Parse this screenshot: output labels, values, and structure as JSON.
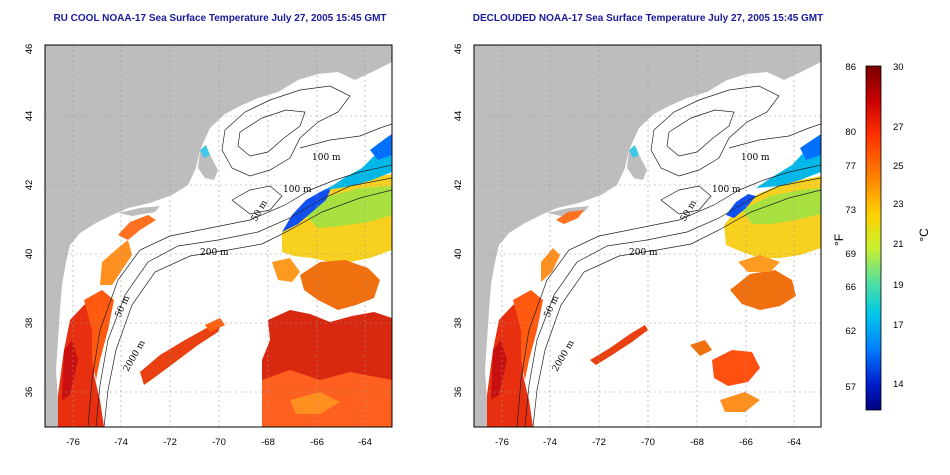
{
  "panels": [
    {
      "id": "left",
      "title": "RU COOL NOAA-17 Sea Surface Temperature July 27, 2005 15:45 GMT",
      "x_ticks": [
        "-76",
        "-74",
        "-72",
        "-70",
        "-68",
        "-66",
        "-64"
      ],
      "y_ticks": [
        "36",
        "38",
        "40",
        "42",
        "44",
        "46"
      ],
      "contour_labels": [
        "100 m",
        "100 m",
        "50 m",
        "200 m",
        "50 m",
        "2000 m"
      ]
    },
    {
      "id": "right",
      "title": "DECLOUDED NOAA-17 Sea Surface Temperature July 27, 2005 15:45 GMT",
      "x_ticks": [
        "-76",
        "-74",
        "-72",
        "-70",
        "-68",
        "-66",
        "-64"
      ],
      "y_ticks": [
        "36",
        "38",
        "40",
        "42",
        "44",
        "46"
      ],
      "contour_labels": [
        "100 m",
        "100 m",
        "50 m",
        "200 m",
        "50 m",
        "2000 m"
      ]
    }
  ],
  "colorbar": {
    "fahrenheit_ticks": [
      "86",
      "80",
      "77",
      "73",
      "69",
      "66",
      "62",
      "57"
    ],
    "celsius_ticks": [
      "30",
      "27",
      "25",
      "23",
      "21",
      "19",
      "17",
      "14"
    ],
    "fahrenheit_unit": "°F",
    "celsius_unit": "°C",
    "colors": [
      "#7a0000",
      "#c80000",
      "#ff3000",
      "#ff8000",
      "#ffd000",
      "#c8f030",
      "#50e0a0",
      "#00c8e8",
      "#0080ff",
      "#0020d0",
      "#000080"
    ]
  },
  "colors": {
    "land": "#bdbdbd",
    "ocean_nodata": "#ffffff",
    "title_text": "#1a1a9c"
  }
}
